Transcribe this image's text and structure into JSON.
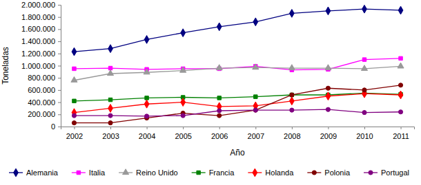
{
  "chart_data": {
    "type": "line",
    "x_label": "Año",
    "y_label": "Toneladas",
    "categories": [
      "2002",
      "2003",
      "2004",
      "2005",
      "2006",
      "2007",
      "2008",
      "2009",
      "2010",
      "2011"
    ],
    "ylim": [
      0,
      2000000
    ],
    "yticks": [
      0,
      {
        "value": 200000,
        "label": "200.000"
      },
      {
        "value": 400000,
        "label": "400.000"
      },
      {
        "value": 600000,
        "label": "600.000"
      },
      {
        "value": 800000,
        "label": "800.000"
      },
      {
        "value": 1000000,
        "label": "1.000.000"
      },
      {
        "value": 1200000,
        "label": "1.200.000"
      },
      {
        "value": 1400000,
        "label": "1.400.000"
      },
      {
        "value": 1600000,
        "label": "1.600.000"
      },
      {
        "value": 1800000,
        "label": "1.800.000"
      },
      {
        "value": 2000000,
        "label": "2.000.000"
      }
    ],
    "grid": false,
    "legend": "bottom",
    "line_style": "solid",
    "series": [
      {
        "name": "Alemania",
        "color": "#000080",
        "marker": "diamond",
        "values": [
          1230000,
          1280000,
          1430000,
          1540000,
          1640000,
          1720000,
          1860000,
          1900000,
          1930000,
          1910000
        ]
      },
      {
        "name": "Italia",
        "color": "#ff00ff",
        "marker": "square",
        "values": [
          950000,
          960000,
          940000,
          950000,
          950000,
          990000,
          930000,
          940000,
          1100000,
          1120000
        ]
      },
      {
        "name": "Reino Unido",
        "color": "#999999",
        "marker": "triangle",
        "values": [
          760000,
          870000,
          890000,
          920000,
          960000,
          970000,
          960000,
          960000,
          950000,
          990000
        ]
      },
      {
        "name": "Francia",
        "color": "#008000",
        "marker": "square",
        "values": [
          420000,
          440000,
          470000,
          480000,
          470000,
          490000,
          520000,
          520000,
          550000,
          530000
        ]
      },
      {
        "name": "Holanda",
        "color": "#ff0000",
        "marker": "diamond",
        "values": [
          230000,
          300000,
          370000,
          400000,
          330000,
          340000,
          420000,
          500000,
          540000,
          520000
        ]
      },
      {
        "name": "Polonia",
        "color": "#800000",
        "marker": "circle",
        "values": [
          60000,
          60000,
          140000,
          220000,
          180000,
          270000,
          520000,
          630000,
          600000,
          680000
        ]
      },
      {
        "name": "Portugal",
        "color": "#800080",
        "marker": "circle",
        "values": [
          180000,
          180000,
          170000,
          180000,
          260000,
          270000,
          270000,
          280000,
          230000,
          240000
        ]
      }
    ]
  }
}
